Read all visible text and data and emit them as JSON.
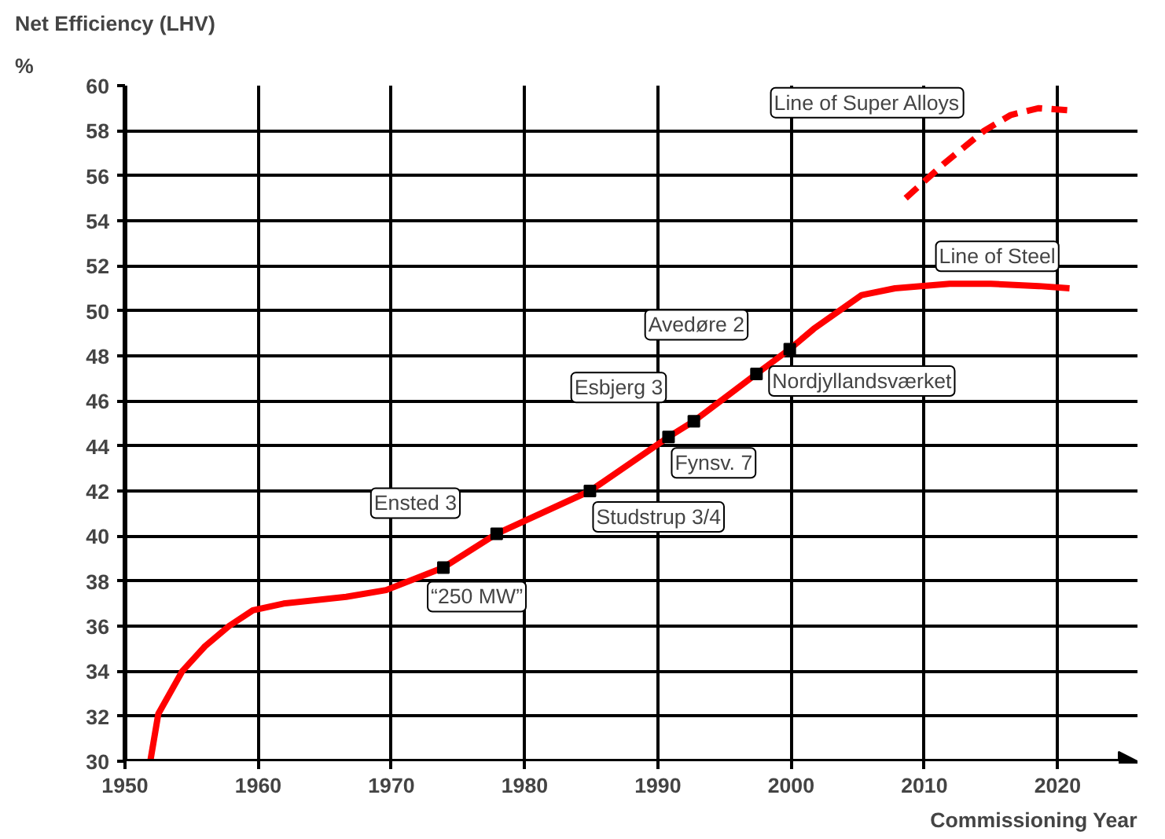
{
  "chart_data": {
    "type": "line",
    "title": "Net Efficiency (LHV)",
    "ylabel": "%",
    "xlabel": "Commissioning Year",
    "xlim": [
      1950,
      2026
    ],
    "ylim": [
      30,
      60
    ],
    "xticks": [
      1950,
      1960,
      1970,
      1980,
      1990,
      2000,
      2010,
      2020
    ],
    "yticks": [
      30,
      32,
      34,
      36,
      38,
      40,
      42,
      44,
      46,
      48,
      50,
      52,
      54,
      56,
      58,
      60
    ],
    "grid": true,
    "marker": "none",
    "series": [
      {
        "name": "Line of Steel",
        "color": "#ff0000",
        "line_style": "solid",
        "x": [
          1951.9,
          1952.5,
          1954.3,
          1956,
          1957.8,
          1959.6,
          1961.9,
          1966.6,
          1969.6,
          1973.9,
          1977.9,
          1984.9,
          1990.8,
          1992.7,
          1997.4,
          1999.9,
          2001.7,
          2005.3,
          2007.8,
          2011.9,
          2015,
          2018.6,
          2020.9
        ],
        "values": [
          30,
          32.1,
          34,
          35.1,
          36,
          36.7,
          37,
          37.3,
          37.6,
          38.6,
          40.1,
          42.0,
          44.4,
          45.1,
          47.2,
          48.3,
          49.2,
          50.7,
          51.0,
          51.2,
          51.2,
          51.1,
          51.0
        ]
      },
      {
        "name": "Line of Super Alloys",
        "color": "#ff0000",
        "line_style": "dashed",
        "x": [
          2008.6,
          2011.4,
          2014.5,
          2016.5,
          2018.6,
          2020.9
        ],
        "values": [
          55.0,
          56.5,
          58.0,
          58.7,
          59.0,
          58.9
        ]
      }
    ],
    "annotations": [
      {
        "text": "“250 MW”",
        "x": 1973.9,
        "y": 38.6
      },
      {
        "text": "Ensted 3",
        "x": 1977.9,
        "y": 40.1
      },
      {
        "text": "Studstrup 3/4",
        "x": 1984.9,
        "y": 42.0
      },
      {
        "text": "Fynsv. 7",
        "x": 1990.8,
        "y": 44.4
      },
      {
        "text": "Esbjerg 3",
        "x": 1992.7,
        "y": 45.1
      },
      {
        "text": "Nordjyllandsværket",
        "x": 1997.4,
        "y": 47.2
      },
      {
        "text": "Avedøre 2",
        "x": 1999.9,
        "y": 48.3
      }
    ]
  }
}
